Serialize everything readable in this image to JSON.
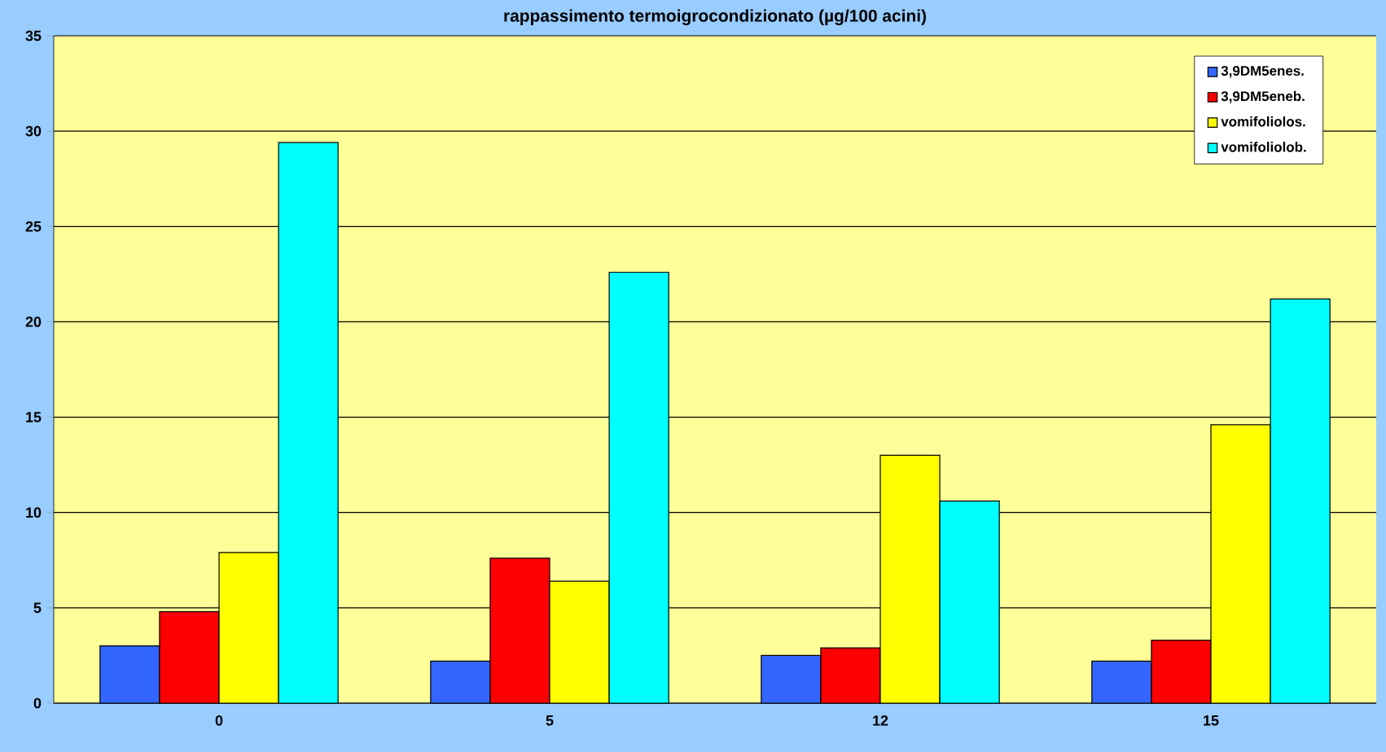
{
  "chart_data": {
    "type": "bar",
    "title": "rappassimento termoigrocondizionato  (µg/100 acini)",
    "categories": [
      "0",
      "5",
      "12",
      "15"
    ],
    "series": [
      {
        "name": "3,9DM5enes.",
        "color": "#3366ff",
        "values": [
          3.0,
          2.2,
          2.5,
          2.2
        ]
      },
      {
        "name": "3,9DM5eneb.",
        "color": "#ff0000",
        "values": [
          4.8,
          7.6,
          2.9,
          3.3
        ]
      },
      {
        "name": "vomifoliolos.",
        "color": "#ffff00",
        "values": [
          7.9,
          6.4,
          13.0,
          14.6
        ]
      },
      {
        "name": "vomifoliolob.",
        "color": "#00ffff",
        "values": [
          29.4,
          22.6,
          10.6,
          21.2
        ]
      }
    ],
    "ylim": [
      0,
      35
    ],
    "yticks": [
      0,
      5,
      10,
      15,
      20,
      25,
      30,
      35
    ],
    "grid": "y",
    "legend": "top right"
  }
}
